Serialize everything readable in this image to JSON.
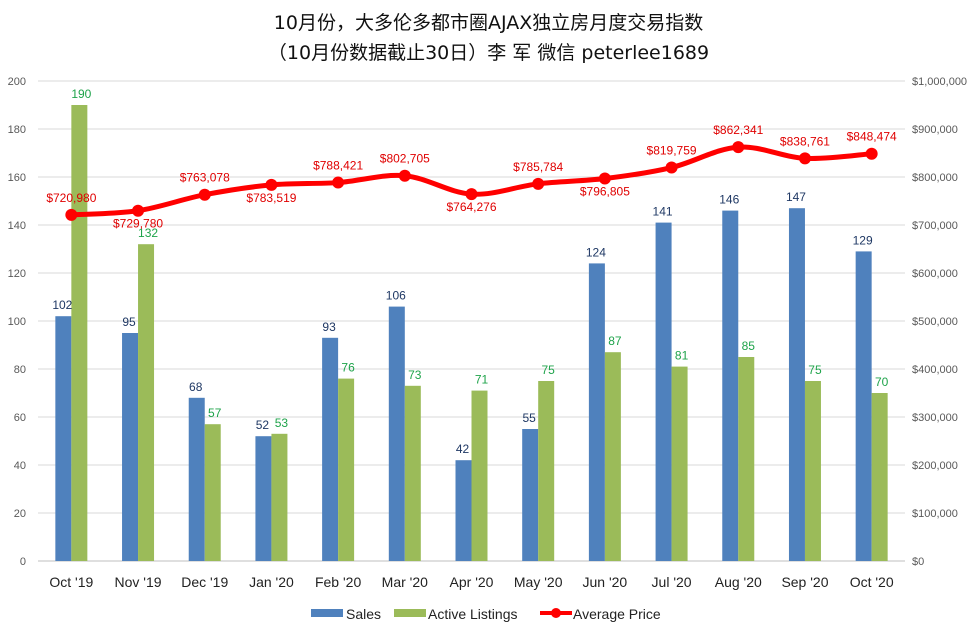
{
  "chart_data": {
    "type": "bar",
    "title": "10月份，大多伦多都市圈AJAX独立房月度交易指数",
    "subtitle": "（10月份数据截止30日）李 军  微信  peterlee1689",
    "categories": [
      "Oct '19",
      "Nov '19",
      "Dec '19",
      "Jan '20",
      "Feb '20",
      "Mar '20",
      "Apr '20",
      "May '20",
      "Jun '20",
      "Jul '20",
      "Aug '20",
      "Sep '20",
      "Oct '20"
    ],
    "series": [
      {
        "name": "Sales",
        "type": "bar",
        "axis": "left",
        "color": "#4f81bd",
        "label_color": "#1f3864",
        "values": [
          102,
          95,
          68,
          52,
          93,
          106,
          42,
          55,
          124,
          141,
          146,
          147,
          129
        ]
      },
      {
        "name": "Active Listings",
        "type": "bar",
        "axis": "left",
        "color": "#9bbb59",
        "label_color": "#1ea34a",
        "values": [
          190,
          132,
          57,
          53,
          76,
          73,
          71,
          75,
          87,
          81,
          85,
          75,
          70
        ]
      },
      {
        "name": "Average Price",
        "type": "line",
        "axis": "right",
        "color": "#ff0000",
        "label_color": "#e00000",
        "values": [
          720980,
          729780,
          763078,
          783519,
          788421,
          802705,
          764276,
          785784,
          796805,
          819759,
          862341,
          838761,
          848474
        ],
        "labels": [
          "$720,980",
          "$729,780",
          "$763,078",
          "$783,519",
          "$788,421",
          "$802,705",
          "$764,276",
          "$785,784",
          "$796,805",
          "$819,759",
          "$862,341",
          "$838,761",
          "$848,474"
        ]
      }
    ],
    "ylim": [
      0,
      200
    ],
    "y_ticks": [
      "0",
      "20",
      "40",
      "60",
      "80",
      "100",
      "120",
      "140",
      "160",
      "180",
      "200"
    ],
    "y2lim": [
      0,
      1000000
    ],
    "y2_ticks": [
      "$0",
      "$100,000",
      "$200,000",
      "$300,000",
      "$400,000",
      "$500,000",
      "$600,000",
      "$700,000",
      "$800,000",
      "$900,000",
      "$1,000,000"
    ],
    "grid": true,
    "legend": "bottom"
  }
}
